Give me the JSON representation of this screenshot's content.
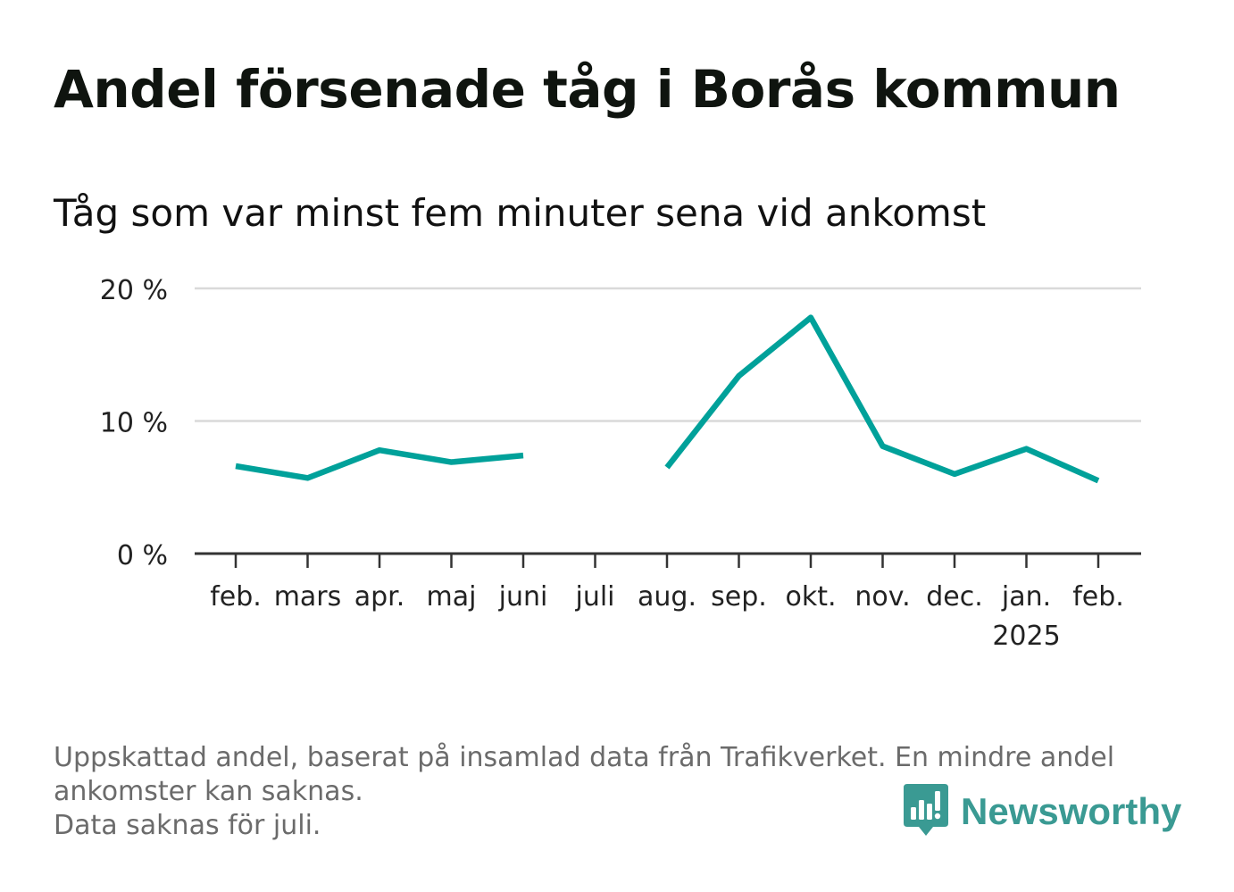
{
  "title": "Andel försenade tåg i Borås kommun",
  "subtitle": "Tåg som var minst fem minuter sena vid ankomst",
  "colors": {
    "line": "#00A19A",
    "grid": "#d9d9d9",
    "axis": "#333333",
    "brand": "#3a9a93",
    "footer": "#6b6b6b"
  },
  "chart_data": {
    "type": "line",
    "categories": [
      "feb.",
      "mars",
      "apr.",
      "maj",
      "juni",
      "juli",
      "aug.",
      "sep.",
      "okt.",
      "nov.",
      "dec.",
      "jan.",
      "feb."
    ],
    "year_label": "2025",
    "year_label_under": "jan.",
    "series": [
      {
        "values": [
          6.6,
          5.7,
          7.8,
          6.9,
          7.4,
          null,
          6.5,
          13.4,
          17.8,
          8.1,
          6.0,
          7.9,
          5.5
        ]
      }
    ],
    "ylim": [
      0,
      20
    ],
    "yticks": [
      0,
      10,
      20
    ],
    "ytick_labels": [
      "0 %",
      "10 %",
      "20 %"
    ],
    "grid": true
  },
  "footer": {
    "line1": "Uppskattad andel, baserat på insamlad data från Trafikverket. En mindre andel",
    "line2": "ankomster kan saknas.",
    "line3": "Data saknas för juli."
  },
  "brand": {
    "name": "Newsworthy",
    "icon": "newsworthy-logo-icon"
  }
}
